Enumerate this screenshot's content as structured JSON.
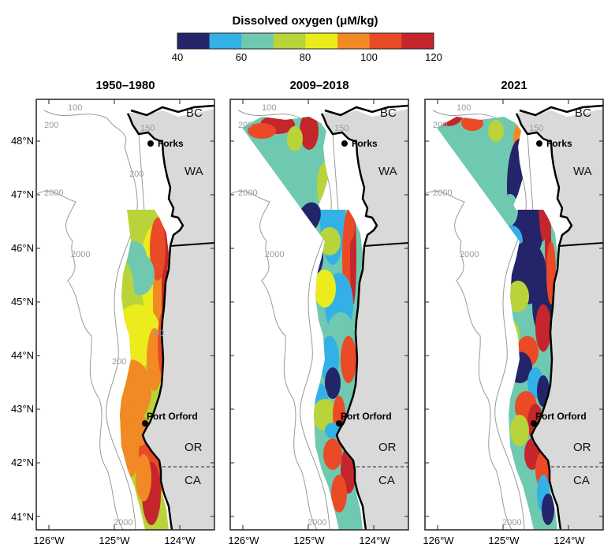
{
  "colorbar": {
    "title": "Dissolved oxygen (μM/kg)",
    "colors": [
      "#24246b",
      "#33b1e6",
      "#6ec9b0",
      "#b8d43a",
      "#ecec1c",
      "#f18a24",
      "#ea4a25",
      "#c4262b"
    ],
    "tick_labels": [
      "40",
      "60",
      "80",
      "100",
      "120"
    ]
  },
  "panels": [
    {
      "title": "1950–1980"
    },
    {
      "title": "2009–2018"
    },
    {
      "title": "2021"
    }
  ],
  "lat_labels": [
    "48°N",
    "47°N",
    "46°N",
    "45°N",
    "44°N",
    "43°N",
    "42°N",
    "41°N"
  ],
  "lon_labels": [
    "126°W",
    "125°W",
    "124°W"
  ],
  "regions": {
    "bc": "BC",
    "wa": "WA",
    "or": "OR",
    "ca": "CA"
  },
  "cities": {
    "forks": "Forks",
    "port_orford": "Port Orford"
  },
  "contours": {
    "c100": "100",
    "c200": "200",
    "c2000": "2000",
    "c50": "50",
    "c150": "150"
  },
  "colors": {
    "land": "#d9d9d9",
    "coast": "#000000",
    "contour": "#9a9a9a",
    "frame": "#222222"
  }
}
